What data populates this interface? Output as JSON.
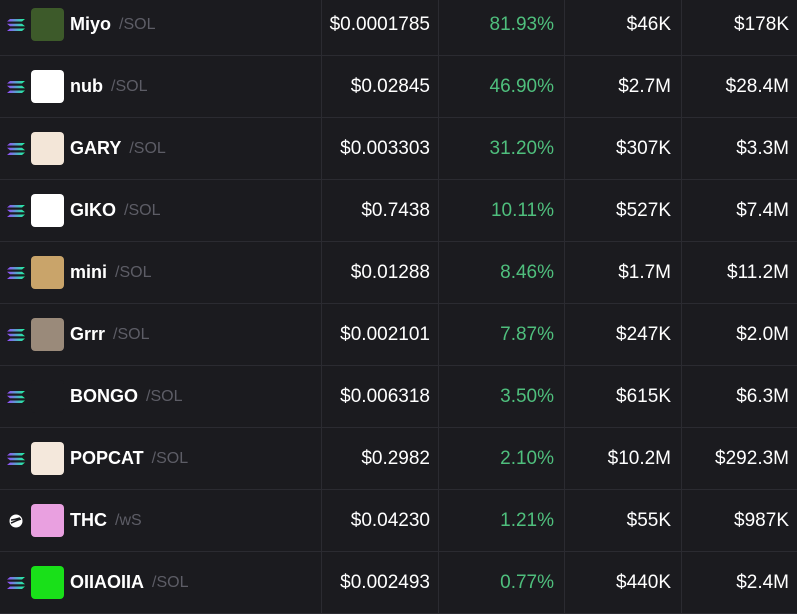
{
  "table": {
    "rows": [
      {
        "name": "Miyo",
        "quote": "/SOL",
        "price": "$0.0001785",
        "change": "81.93%",
        "volume": "$46K",
        "market_cap": "$178K"
      },
      {
        "name": "nub",
        "quote": "/SOL",
        "price": "$0.02845",
        "change": "46.90%",
        "volume": "$2.7M",
        "market_cap": "$28.4M"
      },
      {
        "name": "GARY",
        "quote": "/SOL",
        "price": "$0.003303",
        "change": "31.20%",
        "volume": "$307K",
        "market_cap": "$3.3M"
      },
      {
        "name": "GIKO",
        "quote": "/SOL",
        "price": "$0.7438",
        "change": "10.11%",
        "volume": "$527K",
        "market_cap": "$7.4M"
      },
      {
        "name": "mini",
        "quote": "/SOL",
        "price": "$0.01288",
        "change": "8.46%",
        "volume": "$1.7M",
        "market_cap": "$11.2M"
      },
      {
        "name": "Grrr",
        "quote": "/SOL",
        "price": "$0.002101",
        "change": "7.87%",
        "volume": "$247K",
        "market_cap": "$2.0M"
      },
      {
        "name": "BONGO",
        "quote": "/SOL",
        "price": "$0.006318",
        "change": "3.50%",
        "volume": "$615K",
        "market_cap": "$6.3M"
      },
      {
        "name": "POPCAT",
        "quote": "/SOL",
        "price": "$0.2982",
        "change": "2.10%",
        "volume": "$10.2M",
        "market_cap": "$292.3M"
      },
      {
        "name": "THC",
        "quote": "/wS",
        "price": "$0.04230",
        "change": "1.21%",
        "volume": "$55K",
        "market_cap": "$987K"
      },
      {
        "name": "OIIAOIIA",
        "quote": "/SOL",
        "price": "$0.002493",
        "change": "0.77%",
        "volume": "$440K",
        "market_cap": "$2.4M"
      }
    ]
  }
}
